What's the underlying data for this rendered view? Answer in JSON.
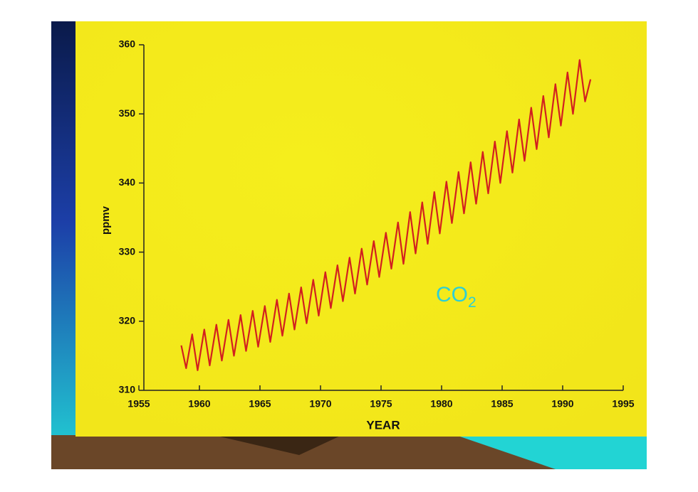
{
  "chart_data": {
    "type": "line",
    "x_label": "YEAR",
    "y_label": "ppmv",
    "annotation": {
      "text": "CO",
      "subscript": "2"
    },
    "color": "#d21f1f",
    "x": [
      1958.5,
      1958.9,
      1959.4,
      1959.85,
      1960.4,
      1960.85,
      1961.4,
      1961.85,
      1962.4,
      1962.85,
      1963.4,
      1963.85,
      1964.4,
      1964.85,
      1965.4,
      1965.85,
      1966.4,
      1966.85,
      1967.4,
      1967.85,
      1968.4,
      1968.85,
      1969.4,
      1969.85,
      1970.4,
      1970.85,
      1971.4,
      1971.85,
      1972.4,
      1972.85,
      1973.4,
      1973.85,
      1974.4,
      1974.85,
      1975.4,
      1975.85,
      1976.4,
      1976.85,
      1977.4,
      1977.85,
      1978.4,
      1978.85,
      1979.4,
      1979.85,
      1980.4,
      1980.85,
      1981.4,
      1981.85,
      1982.4,
      1982.85,
      1983.4,
      1983.85,
      1984.4,
      1984.85,
      1985.4,
      1985.85,
      1986.4,
      1986.85,
      1987.4,
      1987.85,
      1988.4,
      1988.85,
      1989.4,
      1989.85,
      1990.4,
      1990.85,
      1991.4,
      1991.85,
      1992.3
    ],
    "values": [
      316.5,
      313.2,
      318.1,
      312.9,
      318.8,
      313.6,
      319.5,
      314.3,
      320.2,
      315.0,
      320.9,
      315.7,
      321.5,
      316.3,
      322.2,
      317.0,
      323.1,
      317.9,
      324.0,
      318.8,
      324.9,
      319.7,
      326.0,
      320.8,
      327.1,
      321.9,
      328.1,
      322.9,
      329.2,
      324.0,
      330.5,
      325.3,
      331.6,
      326.4,
      332.8,
      327.6,
      334.3,
      328.3,
      335.8,
      329.8,
      337.2,
      331.2,
      338.7,
      332.7,
      340.2,
      334.2,
      341.6,
      335.6,
      343.0,
      337.0,
      344.5,
      338.5,
      346.0,
      340.0,
      347.5,
      341.5,
      349.2,
      343.2,
      350.9,
      344.9,
      352.6,
      346.6,
      354.3,
      348.3,
      356.0,
      350.0,
      357.8,
      351.8,
      355.0
    ],
    "xlim": [
      1955,
      1995
    ],
    "xticks": [
      1955,
      1960,
      1965,
      1970,
      1975,
      1980,
      1985,
      1990,
      1995
    ],
    "ylim": [
      310,
      360
    ],
    "yticks": [
      310,
      320,
      330,
      340,
      350,
      360
    ],
    "grid": false
  }
}
